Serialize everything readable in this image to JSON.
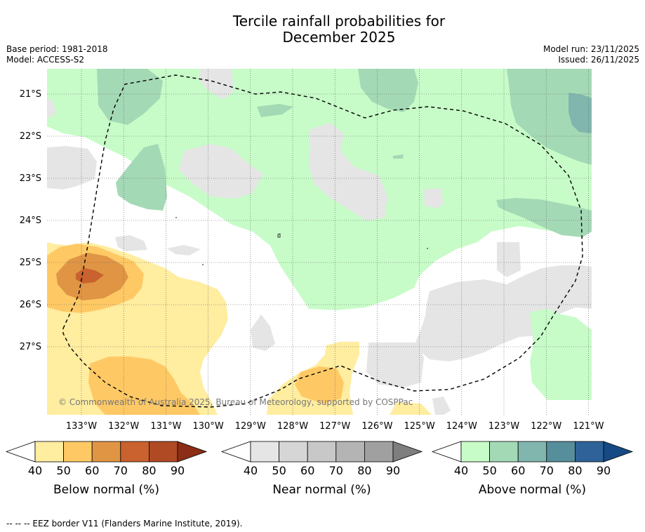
{
  "title": {
    "line1": "Tercile rainfall probabilities for",
    "line2": "December 2025"
  },
  "meta": {
    "base_period": "Base period: 1981-2018",
    "model": "Model: ACCESS-S2",
    "model_run": "Model run: 23/11/2025",
    "issued": "Issued: 26/11/2025"
  },
  "map": {
    "lat_labels": [
      "21°S",
      "22°S",
      "23°S",
      "24°S",
      "25°S",
      "26°S",
      "27°S"
    ],
    "lon_labels": [
      "133°W",
      "132°W",
      "131°W",
      "130°W",
      "129°W",
      "128°W",
      "127°W",
      "126°W",
      "125°W",
      "124°W",
      "123°W",
      "122°W",
      "121°W"
    ],
    "copyright": "© Commonwealth of Australia 2025, Bureau of Meteorology, supported by COSPPac"
  },
  "colors": {
    "below": [
      "#ffeda0",
      "#fec965",
      "#e09545",
      "#c9622e",
      "#b04a25",
      "#8c2d15"
    ],
    "near": [
      "#e5e5e5",
      "#d6d6d6",
      "#c8c8c8",
      "#b4b4b4",
      "#a0a0a0",
      "#7e7e7e"
    ],
    "above": [
      "#c7fcc8",
      "#a4d9b6",
      "#80b6ae",
      "#568e9c",
      "#2e6298",
      "#164a85"
    ]
  },
  "legends": [
    {
      "key": "below",
      "title": "Below normal (%)",
      "ticks": [
        "40",
        "50",
        "60",
        "70",
        "80",
        "90"
      ]
    },
    {
      "key": "near",
      "title": "Near normal (%)",
      "ticks": [
        "40",
        "50",
        "60",
        "70",
        "80",
        "90"
      ]
    },
    {
      "key": "above",
      "title": "Above normal (%)",
      "ticks": [
        "40",
        "50",
        "60",
        "70",
        "80",
        "90"
      ]
    }
  ],
  "footnote": "--  --  -- EEZ border V11 (Flanders Marine Institute, 2019)."
}
